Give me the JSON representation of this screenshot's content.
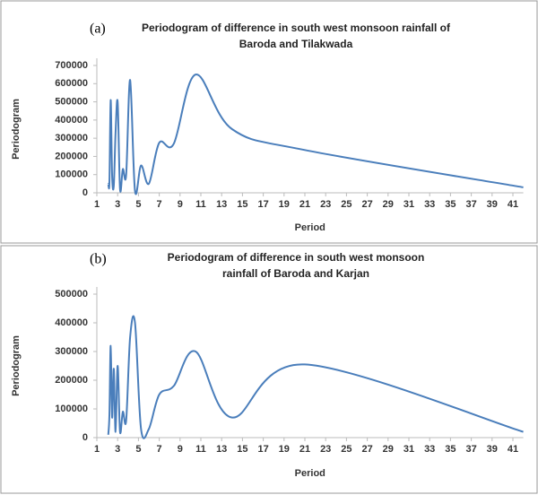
{
  "chart_data": [
    {
      "type": "line",
      "panel_label": "(a)",
      "title": [
        "Periodogram of difference in south west monsoon rainfall of",
        "Baroda and Tilakwada"
      ],
      "x_label": "Period",
      "y_label": "Periodogram",
      "xlim": [
        1,
        42
      ],
      "xticks": [
        1,
        3,
        5,
        7,
        9,
        11,
        13,
        15,
        17,
        19,
        21,
        23,
        25,
        27,
        29,
        31,
        33,
        35,
        37,
        39,
        41
      ],
      "ylim": [
        0,
        700000
      ],
      "yticks": [
        0,
        100000,
        200000,
        300000,
        400000,
        500000,
        600000,
        700000
      ],
      "series": [
        {
          "color": "#4a7ebb",
          "x": [
            2.1,
            2.21,
            2.33,
            2.47,
            2.63,
            2.8,
            3,
            3.23,
            3.5,
            3.82,
            4.2,
            4.67,
            5.25,
            6,
            7,
            8.4,
            10.5,
            14,
            21,
            42
          ],
          "values": [
            50000,
            60000,
            510000,
            90000,
            40000,
            330000,
            500000,
            20000,
            130000,
            100000,
            620000,
            10000,
            150000,
            50000,
            275000,
            270000,
            650000,
            350000,
            235000,
            30000
          ]
        }
      ]
    },
    {
      "type": "line",
      "panel_label": "(b)",
      "title": [
        "Periodogram of difference in south west monsoon",
        "rainfall of Baroda and Karjan"
      ],
      "x_label": "Period",
      "y_label": "Periodogram",
      "xlim": [
        1,
        42
      ],
      "xticks": [
        1,
        3,
        5,
        7,
        9,
        11,
        13,
        15,
        17,
        19,
        21,
        23,
        25,
        27,
        29,
        31,
        33,
        35,
        37,
        39,
        41
      ],
      "ylim": [
        0,
        500000
      ],
      "yticks": [
        0,
        100000,
        200000,
        300000,
        400000,
        500000
      ],
      "series": [
        {
          "color": "#4a7ebb",
          "x": [
            2.1,
            2.21,
            2.33,
            2.47,
            2.63,
            2.8,
            3,
            3.23,
            3.5,
            3.82,
            4.2,
            4.67,
            5.25,
            6,
            7,
            8.4,
            10.5,
            14,
            21,
            42
          ],
          "values": [
            10000,
            80000,
            320000,
            70000,
            240000,
            20000,
            250000,
            20000,
            90000,
            60000,
            350000,
            400000,
            30000,
            30000,
            150000,
            180000,
            300000,
            70000,
            255000,
            20000
          ]
        }
      ]
    }
  ]
}
